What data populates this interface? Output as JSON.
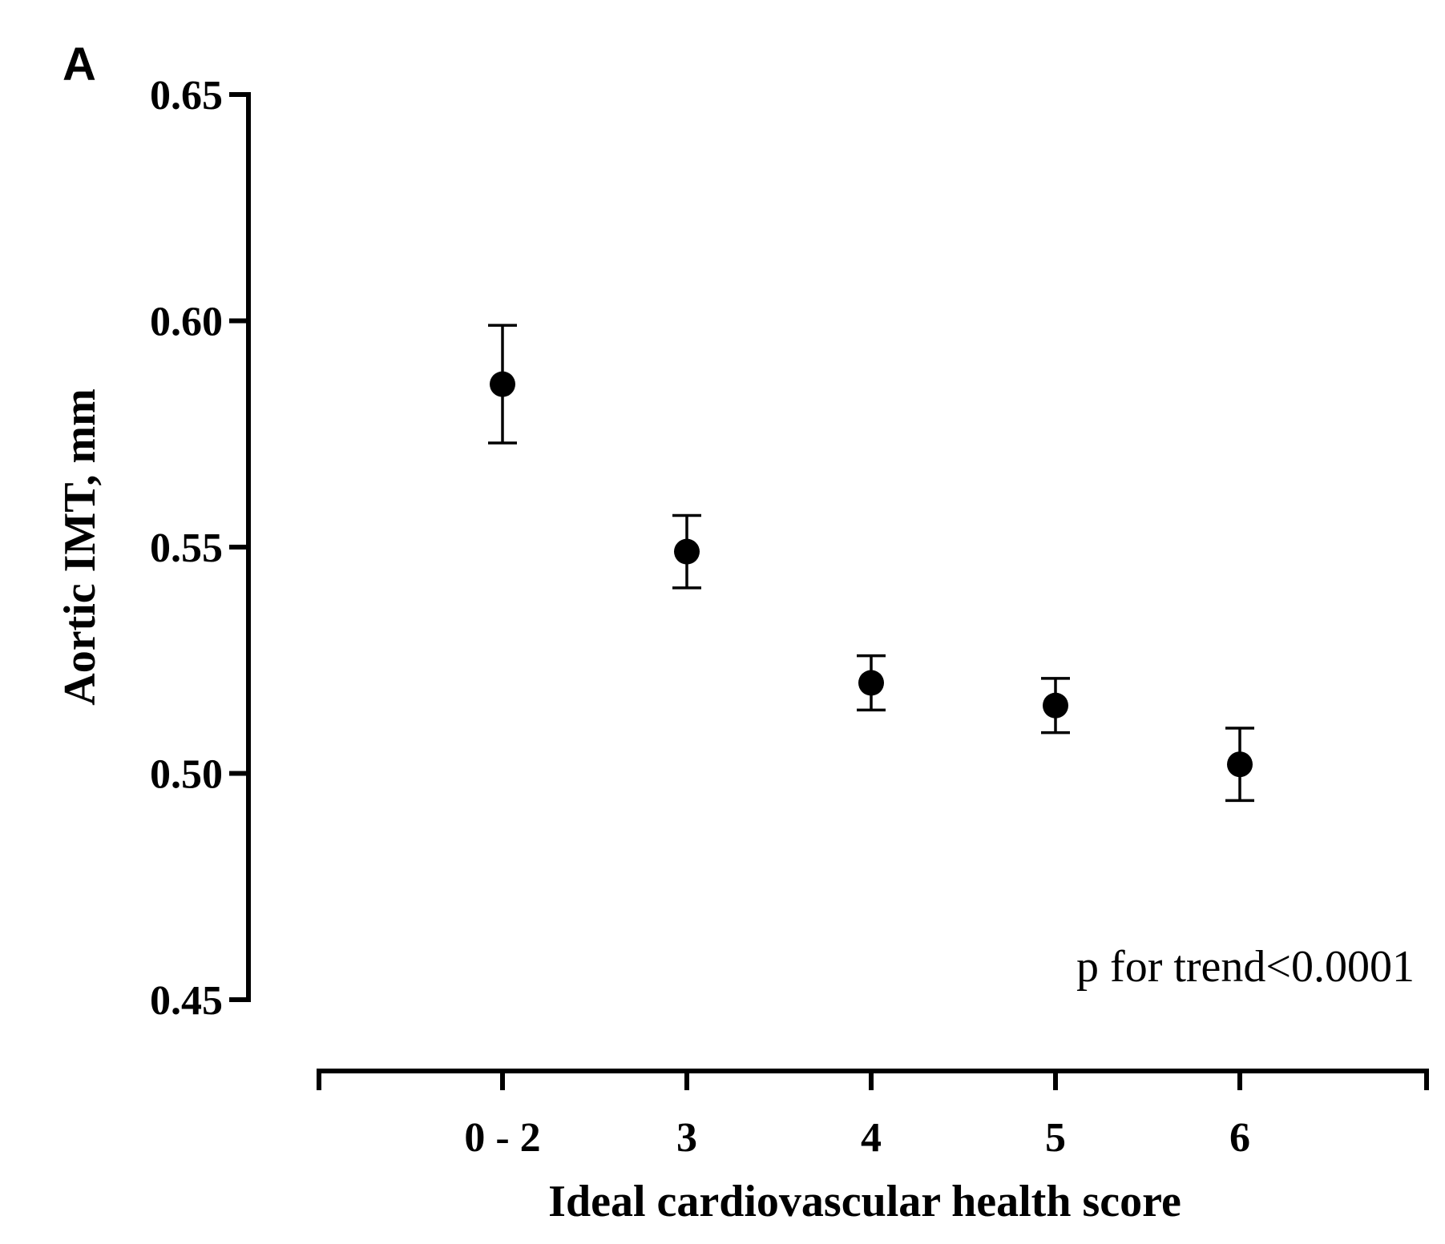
{
  "chart_data": {
    "type": "scatter",
    "panel_label": "A",
    "title": "",
    "xlabel": "Ideal cardiovascular health score",
    "ylabel": "Aortic IMT, mm",
    "categories": [
      "0 - 2",
      "3",
      "4",
      "5",
      "6"
    ],
    "series": [
      {
        "name": "Aortic IMT",
        "values": [
          0.586,
          0.549,
          0.52,
          0.515,
          0.502
        ],
        "error_low": [
          0.573,
          0.541,
          0.514,
          0.509,
          0.494
        ],
        "error_high": [
          0.599,
          0.557,
          0.526,
          0.521,
          0.51
        ]
      }
    ],
    "ylim": [
      0.45,
      0.65
    ],
    "yticks": [
      0.45,
      0.5,
      0.55,
      0.6,
      0.65
    ],
    "ytick_labels": [
      "0.45",
      "0.50",
      "0.55",
      "0.60",
      "0.65"
    ],
    "annotation": "p for trend<0.0001",
    "grid": false,
    "colors": {
      "marker": "#000000",
      "axis": "#000000",
      "background": "#ffffff"
    }
  }
}
